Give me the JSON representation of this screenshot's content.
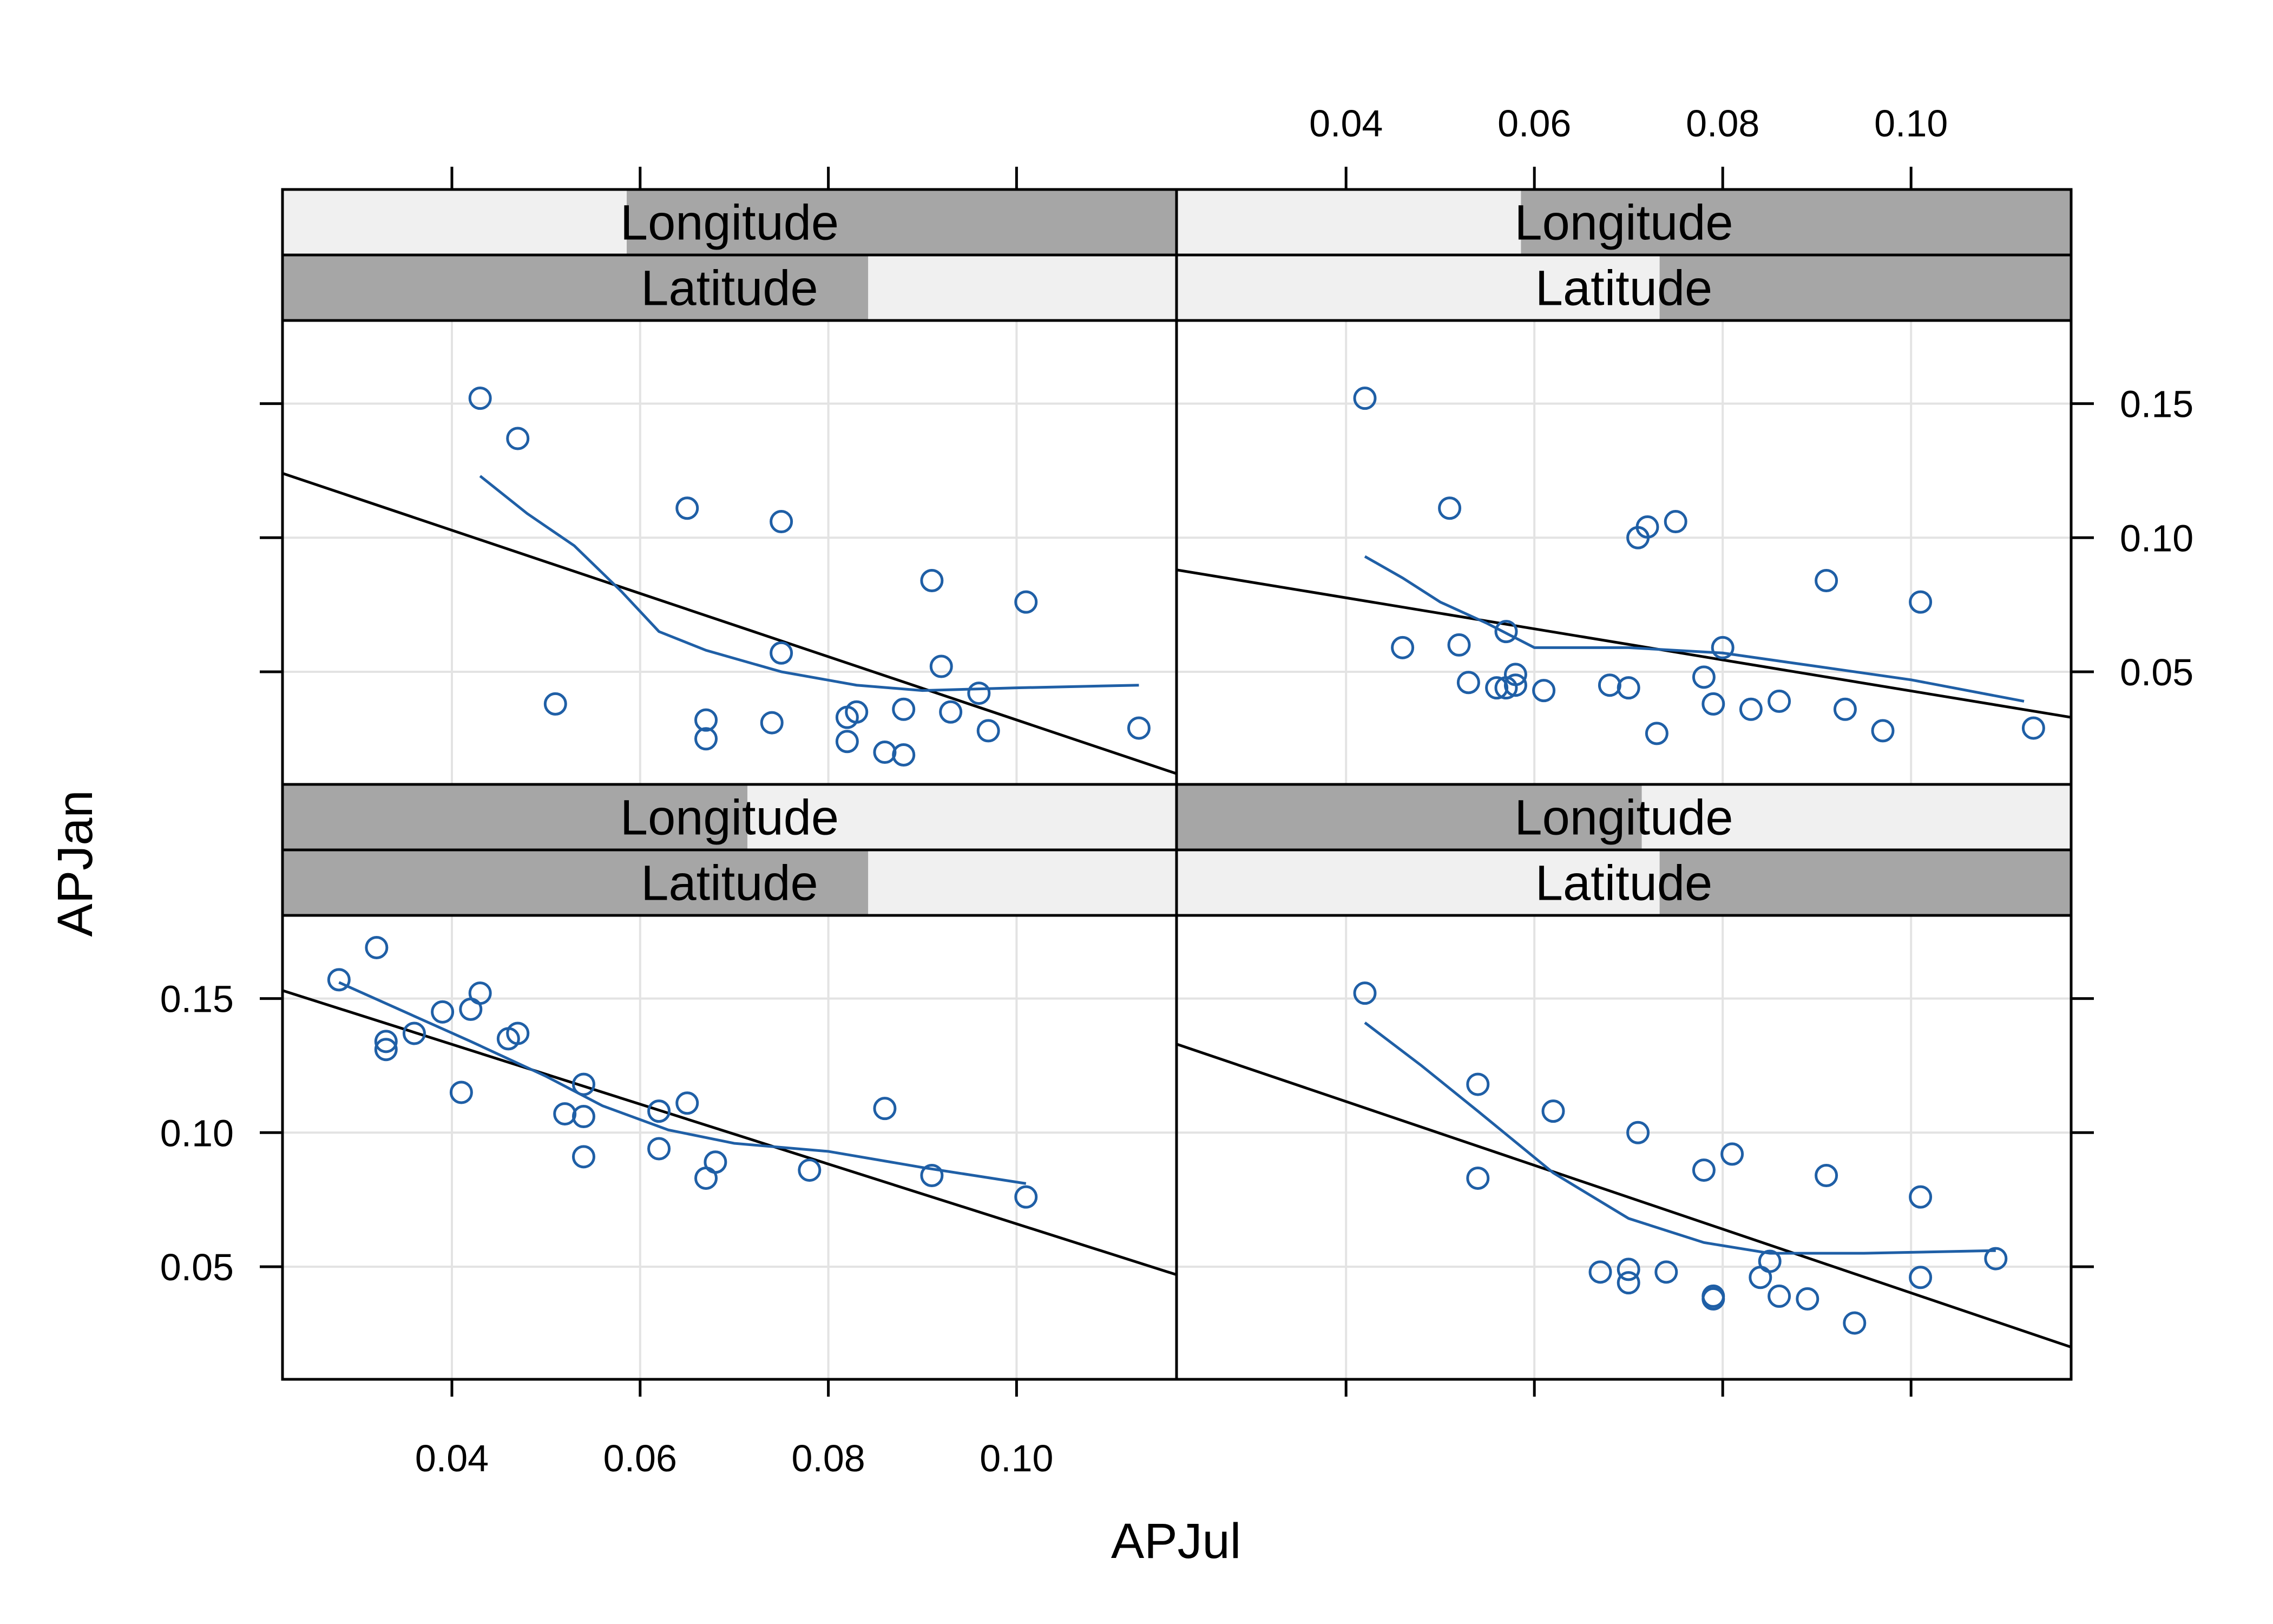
{
  "chart_data": {
    "type": "scatter",
    "xlabel": "APJul",
    "ylabel": "APJan",
    "x_ticks": [
      0.04,
      0.06,
      0.08,
      0.1
    ],
    "x_tick_labels": [
      "0.04",
      "0.06",
      "0.08",
      "0.10"
    ],
    "y_ticks": [
      0.05,
      0.1,
      0.15
    ],
    "y_tick_labels": [
      "0.05",
      "0.10",
      "0.15"
    ],
    "xlim": [
      0.022,
      0.117
    ],
    "ylim": [
      0.008,
      0.181
    ],
    "grid": true,
    "legend": "none",
    "colors": {
      "points": "#1f5fa6",
      "smooth": "#1f5fa6",
      "fit": "#000000",
      "strip_shaded": "#a6a6a6",
      "strip_background": "#f0f0f0",
      "grid": "#e3e3e3"
    },
    "strip_labels": {
      "outer": "Longitude",
      "inner": "Latitude"
    },
    "panels": [
      {
        "position": "top-left",
        "strips": {
          "Longitude": [
            0.385,
            1.0
          ],
          "Latitude": [
            0.0,
            0.655
          ]
        },
        "points": [
          [
            0.043,
            0.152
          ],
          [
            0.047,
            0.137
          ],
          [
            0.051,
            0.038
          ],
          [
            0.065,
            0.111
          ],
          [
            0.067,
            0.032
          ],
          [
            0.067,
            0.025
          ],
          [
            0.074,
            0.031
          ],
          [
            0.075,
            0.106
          ],
          [
            0.075,
            0.057
          ],
          [
            0.082,
            0.033
          ],
          [
            0.082,
            0.024
          ],
          [
            0.083,
            0.035
          ],
          [
            0.086,
            0.02
          ],
          [
            0.088,
            0.036
          ],
          [
            0.088,
            0.019
          ],
          [
            0.091,
            0.084
          ],
          [
            0.092,
            0.052
          ],
          [
            0.093,
            0.035
          ],
          [
            0.096,
            0.042
          ],
          [
            0.097,
            0.028
          ],
          [
            0.101,
            0.076
          ],
          [
            0.113,
            0.029
          ]
        ],
        "fit_line": [
          [
            0.022,
            0.124
          ],
          [
            0.117,
            0.012
          ]
        ],
        "smooth": [
          [
            0.043,
            0.123
          ],
          [
            0.048,
            0.109
          ],
          [
            0.053,
            0.097
          ],
          [
            0.058,
            0.08
          ],
          [
            0.062,
            0.065
          ],
          [
            0.067,
            0.058
          ],
          [
            0.075,
            0.05
          ],
          [
            0.083,
            0.045
          ],
          [
            0.09,
            0.043
          ],
          [
            0.1,
            0.044
          ],
          [
            0.113,
            0.045
          ]
        ]
      },
      {
        "position": "top-right",
        "strips": {
          "Longitude": [
            0.385,
            1.0
          ],
          "Latitude": [
            0.54,
            1.0
          ]
        },
        "points": [
          [
            0.042,
            0.152
          ],
          [
            0.046,
            0.059
          ],
          [
            0.051,
            0.111
          ],
          [
            0.052,
            0.06
          ],
          [
            0.053,
            0.046
          ],
          [
            0.056,
            0.044
          ],
          [
            0.057,
            0.065
          ],
          [
            0.057,
            0.044
          ],
          [
            0.058,
            0.045
          ],
          [
            0.058,
            0.049
          ],
          [
            0.061,
            0.043
          ],
          [
            0.068,
            0.045
          ],
          [
            0.07,
            0.044
          ],
          [
            0.071,
            0.1
          ],
          [
            0.072,
            0.104
          ],
          [
            0.073,
            0.027
          ],
          [
            0.075,
            0.106
          ],
          [
            0.078,
            0.048
          ],
          [
            0.079,
            0.038
          ],
          [
            0.08,
            0.059
          ],
          [
            0.083,
            0.036
          ],
          [
            0.086,
            0.039
          ],
          [
            0.091,
            0.084
          ],
          [
            0.093,
            0.036
          ],
          [
            0.097,
            0.028
          ],
          [
            0.101,
            0.076
          ],
          [
            0.113,
            0.029
          ]
        ],
        "fit_line": [
          [
            0.022,
            0.088
          ],
          [
            0.117,
            0.033
          ]
        ],
        "smooth": [
          [
            0.042,
            0.093
          ],
          [
            0.046,
            0.085
          ],
          [
            0.05,
            0.076
          ],
          [
            0.055,
            0.068
          ],
          [
            0.06,
            0.059
          ],
          [
            0.07,
            0.059
          ],
          [
            0.08,
            0.057
          ],
          [
            0.09,
            0.052
          ],
          [
            0.1,
            0.047
          ],
          [
            0.112,
            0.039
          ]
        ]
      },
      {
        "position": "bottom-left",
        "strips": {
          "Longitude": [
            0.0,
            0.52
          ],
          "Latitude": [
            0.0,
            0.655
          ]
        },
        "points": [
          [
            0.028,
            0.157
          ],
          [
            0.032,
            0.169
          ],
          [
            0.033,
            0.134
          ],
          [
            0.033,
            0.131
          ],
          [
            0.036,
            0.137
          ],
          [
            0.039,
            0.145
          ],
          [
            0.041,
            0.115
          ],
          [
            0.042,
            0.146
          ],
          [
            0.043,
            0.152
          ],
          [
            0.046,
            0.135
          ],
          [
            0.047,
            0.137
          ],
          [
            0.052,
            0.107
          ],
          [
            0.054,
            0.118
          ],
          [
            0.054,
            0.106
          ],
          [
            0.054,
            0.091
          ],
          [
            0.062,
            0.108
          ],
          [
            0.062,
            0.094
          ],
          [
            0.065,
            0.111
          ],
          [
            0.067,
            0.083
          ],
          [
            0.068,
            0.089
          ],
          [
            0.078,
            0.086
          ],
          [
            0.086,
            0.109
          ],
          [
            0.091,
            0.084
          ],
          [
            0.101,
            0.076
          ]
        ],
        "fit_line": [
          [
            0.022,
            0.153
          ],
          [
            0.117,
            0.047
          ]
        ],
        "smooth": [
          [
            0.028,
            0.156
          ],
          [
            0.035,
            0.145
          ],
          [
            0.042,
            0.134
          ],
          [
            0.05,
            0.121
          ],
          [
            0.056,
            0.11
          ],
          [
            0.063,
            0.101
          ],
          [
            0.07,
            0.096
          ],
          [
            0.08,
            0.093
          ],
          [
            0.09,
            0.087
          ],
          [
            0.101,
            0.081
          ]
        ]
      },
      {
        "position": "bottom-right",
        "strips": {
          "Longitude": [
            0.0,
            0.52
          ],
          "Latitude": [
            0.54,
            1.0
          ]
        },
        "points": [
          [
            0.042,
            0.152
          ],
          [
            0.054,
            0.118
          ],
          [
            0.054,
            0.083
          ],
          [
            0.062,
            0.108
          ],
          [
            0.067,
            0.048
          ],
          [
            0.07,
            0.049
          ],
          [
            0.07,
            0.044
          ],
          [
            0.071,
            0.1
          ],
          [
            0.074,
            0.048
          ],
          [
            0.078,
            0.086
          ],
          [
            0.079,
            0.039
          ],
          [
            0.079,
            0.038
          ],
          [
            0.081,
            0.092
          ],
          [
            0.084,
            0.046
          ],
          [
            0.085,
            0.052
          ],
          [
            0.086,
            0.039
          ],
          [
            0.089,
            0.038
          ],
          [
            0.091,
            0.084
          ],
          [
            0.094,
            0.029
          ],
          [
            0.101,
            0.076
          ],
          [
            0.101,
            0.046
          ],
          [
            0.109,
            0.053
          ]
        ],
        "fit_line": [
          [
            0.022,
            0.133
          ],
          [
            0.117,
            0.02
          ]
        ],
        "smooth": [
          [
            0.042,
            0.141
          ],
          [
            0.048,
            0.125
          ],
          [
            0.054,
            0.108
          ],
          [
            0.062,
            0.085
          ],
          [
            0.07,
            0.068
          ],
          [
            0.078,
            0.059
          ],
          [
            0.085,
            0.055
          ],
          [
            0.095,
            0.055
          ],
          [
            0.109,
            0.056
          ]
        ]
      }
    ]
  }
}
